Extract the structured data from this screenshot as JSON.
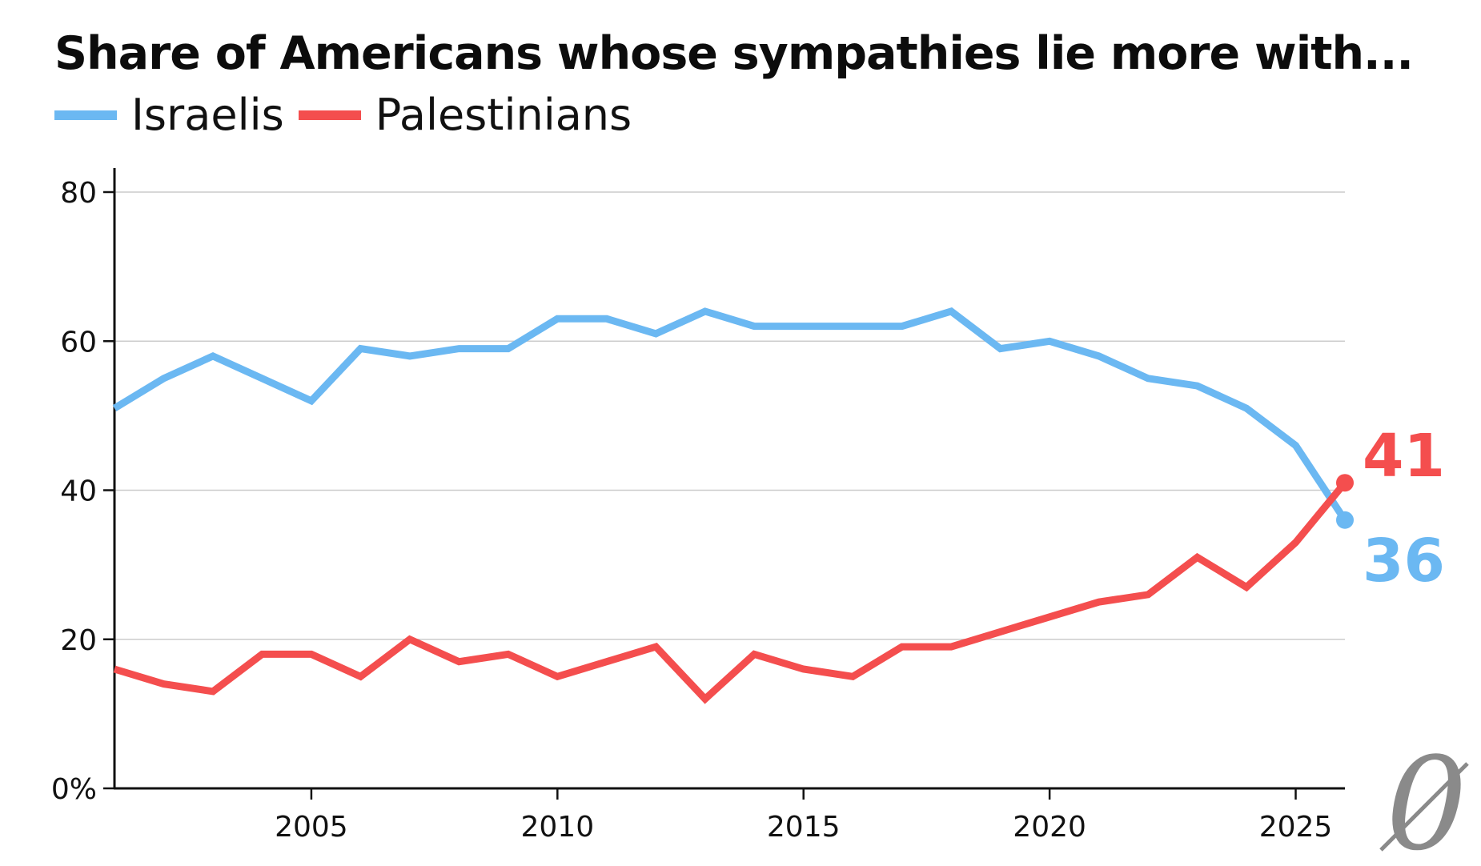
{
  "chart_data": {
    "type": "line",
    "title": "Share of Americans whose sympathies lie more with...",
    "xlabel": "",
    "ylabel": "",
    "x": [
      2001,
      2002,
      2003,
      2004,
      2005,
      2006,
      2007,
      2008,
      2009,
      2010,
      2011,
      2012,
      2013,
      2014,
      2015,
      2016,
      2017,
      2018,
      2019,
      2020,
      2021,
      2022,
      2023,
      2024,
      2025,
      2026
    ],
    "xlim": [
      2001,
      2026
    ],
    "ylim": [
      0,
      80
    ],
    "x_ticks": [
      2005,
      2010,
      2015,
      2020,
      2025
    ],
    "x_tick_labels": [
      "2005",
      "2010",
      "2015",
      "2020",
      "2025"
    ],
    "y_ticks": [
      0,
      20,
      40,
      60,
      80
    ],
    "y_tick_labels": [
      "0%",
      "20",
      "40",
      "60",
      "80"
    ],
    "grid": true,
    "legend_position": "top-left",
    "series": [
      {
        "name": "Israelis",
        "color": "#6bb8f2",
        "values": [
          51,
          55,
          58,
          55,
          52,
          59,
          58,
          59,
          59,
          63,
          63,
          61,
          64,
          62,
          62,
          62,
          62,
          64,
          59,
          60,
          58,
          55,
          54,
          51,
          46,
          36
        ],
        "end_label": "36"
      },
      {
        "name": "Palestinians",
        "color": "#f44e4e",
        "values": [
          16,
          14,
          13,
          18,
          18,
          15,
          20,
          17,
          18,
          15,
          17,
          19,
          12,
          18,
          16,
          15,
          19,
          19,
          21,
          23,
          25,
          26,
          31,
          27,
          33,
          41
        ],
        "end_label": "41"
      }
    ],
    "logo_text": "0"
  }
}
